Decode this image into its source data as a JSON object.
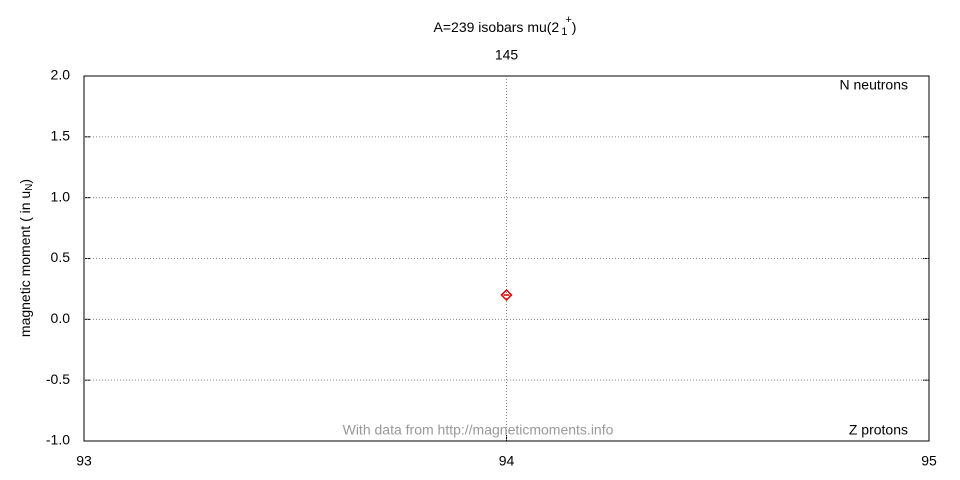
{
  "chart_data": {
    "type": "scatter",
    "title": [
      "A=239 isobars mu(2",
      "1",
      "+",
      ")"
    ],
    "ylabel": [
      "magnetic moment ( in u",
      "N",
      ")"
    ],
    "x2label": "N neutrons",
    "xlabel": "Z protons",
    "annotation": "With data from http://magneticmoments.info",
    "x": [
      94
    ],
    "values": [
      0.2
    ],
    "color": "#e00000",
    "xlim": [
      93,
      95
    ],
    "xticks": [
      93,
      94,
      95
    ],
    "x2ticks": [
      {
        "value": 94,
        "label": "145"
      }
    ],
    "ylim": [
      -1,
      2
    ],
    "yticks": [
      {
        "value": -1,
        "label": "-1.0"
      },
      -0.5,
      {
        "value": 0,
        "label": "0.0"
      },
      0.5,
      {
        "value": 1,
        "label": "1.0"
      },
      1.5,
      {
        "value": 2,
        "label": "2.0"
      }
    ],
    "grid": true
  }
}
